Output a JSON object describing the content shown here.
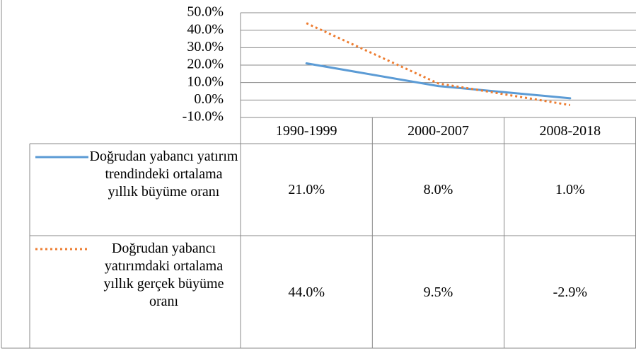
{
  "chart_data": {
    "type": "line",
    "categories": [
      "1990-1999",
      "2000-2007",
      "2008-2018"
    ],
    "series": [
      {
        "name": "Doğrudan yabancı yatırım trendindeki ortalama yıllık büyüme oranı",
        "color": "#5b9bd5",
        "style": "solid",
        "values": [
          21.0,
          8.0,
          1.0
        ],
        "value_labels": [
          "21.0%",
          "8.0%",
          "1.0%"
        ]
      },
      {
        "name": "Doğrudan yabancı yatırımdaki ortalama yıllık gerçek büyüme oranı",
        "color": "#ed7d31",
        "style": "dotted",
        "values": [
          44.0,
          9.5,
          -2.9
        ],
        "value_labels": [
          "44.0%",
          "9.5%",
          "-2.9%"
        ]
      }
    ],
    "ylim": [
      -10,
      50
    ],
    "yticks": [
      {
        "value": -10,
        "label": "-10.0%"
      },
      {
        "value": 0,
        "label": "0.0%"
      },
      {
        "value": 10,
        "label": "10.0%"
      },
      {
        "value": 20,
        "label": "20.0%"
      },
      {
        "value": 30,
        "label": "30.0%"
      },
      {
        "value": 40,
        "label": "40.0%"
      },
      {
        "value": 50,
        "label": "50.0%"
      }
    ],
    "grid": true
  }
}
